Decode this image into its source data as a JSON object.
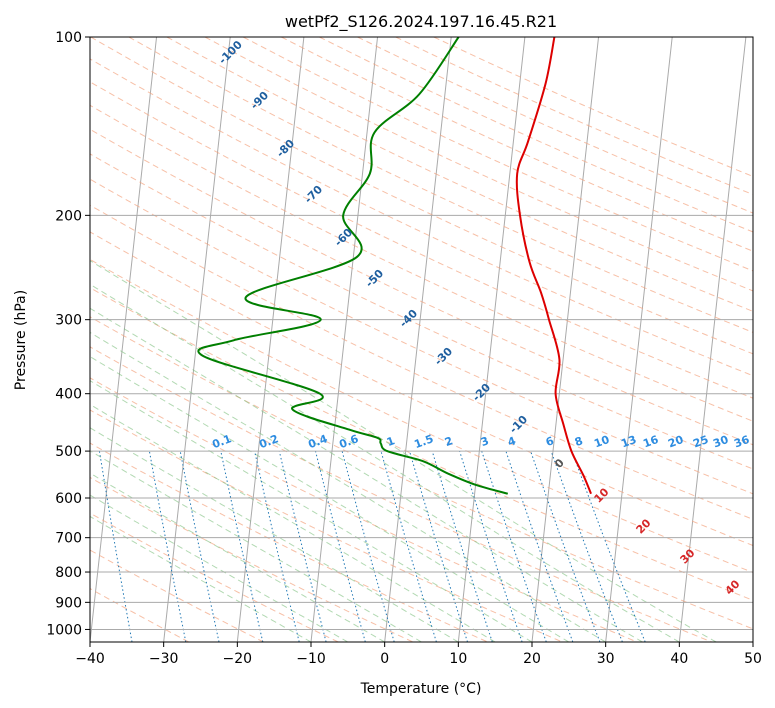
{
  "chart_data": {
    "type": "line",
    "title": "wetPf2_S126.2024.197.16.45.R21",
    "xlabel": "Temperature (°C)",
    "ylabel": "Pressure (hPa)",
    "xlim": [
      -40,
      50
    ],
    "ylim": [
      1050,
      100
    ],
    "y_scale": "log",
    "grid": true,
    "x_ticks": [
      -40,
      -30,
      -20,
      -10,
      0,
      10,
      20,
      30,
      40,
      50
    ],
    "y_ticks": [
      100,
      200,
      300,
      400,
      500,
      600,
      700,
      800,
      900,
      1000
    ],
    "dry_adiabat_labels": [
      "-100",
      "-90",
      "-80",
      "-70",
      "-60",
      "-50",
      "-40",
      "-30",
      "-20",
      "-10"
    ],
    "mixing_ratio_labels": [
      "0.1",
      "0.2",
      "0.4",
      "0.6",
      "1",
      "1.5",
      "2",
      "3",
      "4",
      "6",
      "8",
      "10",
      "13",
      "16",
      "20",
      "25",
      "30",
      "36"
    ],
    "moist_adiabat_labels": [
      "0",
      "10",
      "20",
      "30",
      "40"
    ],
    "series": [
      {
        "color": "#dd0000",
        "points": [
          [
            14.0,
            100
          ],
          [
            13.5,
            120
          ],
          [
            12.0,
            150
          ],
          [
            11.0,
            170
          ],
          [
            12.0,
            200
          ],
          [
            14.0,
            240
          ],
          [
            16.0,
            270
          ],
          [
            17.5,
            300
          ],
          [
            19.5,
            350
          ],
          [
            19.5,
            400
          ],
          [
            21.0,
            450
          ],
          [
            22.5,
            500
          ],
          [
            24.5,
            550
          ],
          [
            25.8,
            590
          ]
        ]
      },
      {
        "color": "#007f00",
        "points": [
          [
            1.0,
            100
          ],
          [
            -3.5,
            125
          ],
          [
            -9.0,
            145
          ],
          [
            -9.0,
            170
          ],
          [
            -12.0,
            200
          ],
          [
            -9.5,
            235
          ],
          [
            -24.0,
            275
          ],
          [
            -13.5,
            300
          ],
          [
            -25.0,
            325
          ],
          [
            -29.0,
            345
          ],
          [
            -12.5,
            400
          ],
          [
            -16.0,
            425
          ],
          [
            -8.0,
            460
          ],
          [
            -4.0,
            475
          ],
          [
            -3.5,
            485
          ],
          [
            -2.5,
            500
          ],
          [
            2.5,
            520
          ],
          [
            6.0,
            545
          ],
          [
            10.0,
            570
          ],
          [
            14.5,
            590
          ]
        ]
      }
    ]
  }
}
